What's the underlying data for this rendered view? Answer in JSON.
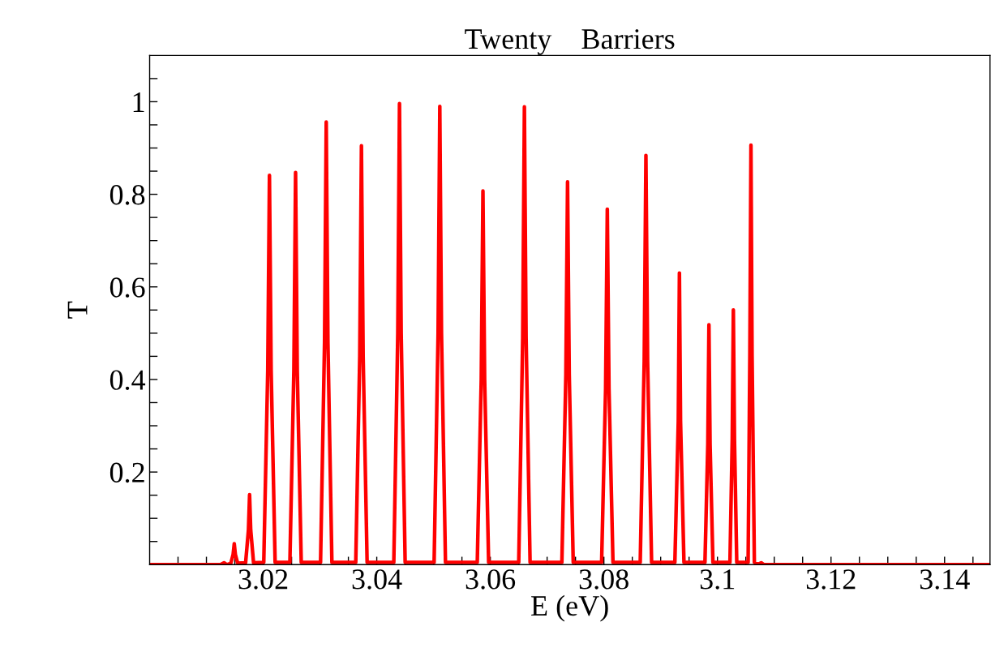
{
  "chart_data": {
    "type": "line",
    "title": "Twenty    Barriers",
    "xlabel": "E (eV)",
    "ylabel": "T",
    "xlim": [
      3.0,
      3.148
    ],
    "ylim": [
      0,
      1.1
    ],
    "xticks": [
      {
        "value": 3.005,
        "label": null
      },
      {
        "value": 3.01,
        "label": null
      },
      {
        "value": 3.015,
        "label": null
      },
      3.02,
      {
        "value": 3.025,
        "label": null
      },
      {
        "value": 3.03,
        "label": null
      },
      {
        "value": 3.035,
        "label": null
      },
      3.04,
      {
        "value": 3.045,
        "label": null
      },
      {
        "value": 3.05,
        "label": null
      },
      {
        "value": 3.055,
        "label": null
      },
      3.06,
      {
        "value": 3.065,
        "label": null
      },
      {
        "value": 3.07,
        "label": null
      },
      {
        "value": 3.075,
        "label": null
      },
      3.08,
      {
        "value": 3.085,
        "label": null
      },
      {
        "value": 3.09,
        "label": null
      },
      {
        "value": 3.095,
        "label": null
      },
      {
        "value": 3.1,
        "label": "3.1"
      },
      {
        "value": 3.105,
        "label": null
      },
      {
        "value": 3.11,
        "label": null
      },
      {
        "value": 3.115,
        "label": null
      },
      3.12,
      {
        "value": 3.125,
        "label": null
      },
      {
        "value": 3.13,
        "label": null
      },
      {
        "value": 3.135,
        "label": null
      },
      3.14,
      {
        "value": 3.145,
        "label": null
      }
    ],
    "yticks": [
      {
        "value": 0.05,
        "label": null
      },
      {
        "value": 0.1,
        "label": null
      },
      {
        "value": 0.15,
        "label": null
      },
      0.2,
      {
        "value": 0.25,
        "label": null
      },
      {
        "value": 0.3,
        "label": null
      },
      {
        "value": 0.35,
        "label": null
      },
      0.4,
      {
        "value": 0.45,
        "label": null
      },
      {
        "value": 0.5,
        "label": null
      },
      {
        "value": 0.55,
        "label": null
      },
      0.6,
      {
        "value": 0.65,
        "label": null
      },
      {
        "value": 0.7,
        "label": null
      },
      {
        "value": 0.75,
        "label": null
      },
      0.8,
      {
        "value": 0.85,
        "label": null
      },
      {
        "value": 0.9,
        "label": null
      },
      {
        "value": 0.95,
        "label": null
      },
      {
        "value": 1,
        "label": "1"
      },
      {
        "value": 1.05,
        "label": null
      }
    ],
    "series": [
      {
        "color": "#ff0000",
        "x": [
          3.0,
          3.0125,
          3.0131,
          3.0136,
          3.0143,
          3.0147,
          3.0149,
          3.0151,
          3.0155,
          3.0169,
          3.0174,
          3.0176,
          3.0178,
          3.0183,
          3.0201,
          3.0208,
          3.0211,
          3.0214,
          3.0221,
          3.0247,
          3.0254,
          3.0257,
          3.026,
          3.0267,
          3.0301,
          3.0308,
          3.0311,
          3.0314,
          3.0321,
          3.0363,
          3.037,
          3.0373,
          3.0376,
          3.0383,
          3.043,
          3.0437,
          3.044,
          3.0443,
          3.045,
          3.0501,
          3.0508,
          3.0511,
          3.0514,
          3.0521,
          3.0577,
          3.0584,
          3.0587,
          3.059,
          3.0597,
          3.065,
          3.0657,
          3.066,
          3.0663,
          3.067,
          3.0726,
          3.0733,
          3.0736,
          3.0739,
          3.0746,
          3.0796,
          3.0803,
          3.0806,
          3.0809,
          3.0816,
          3.0864,
          3.0871,
          3.0874,
          3.0877,
          3.0884,
          3.0925,
          3.0931,
          3.0933,
          3.0935,
          3.0941,
          3.0978,
          3.0983,
          3.0985,
          3.0987,
          3.0992,
          3.1022,
          3.1026,
          3.1028,
          3.103,
          3.1034,
          3.1054,
          3.1057,
          3.1059,
          3.1061,
          3.1065,
          3.1072,
          3.1077,
          3.1082,
          3.148
        ],
        "values": [
          0,
          0,
          0.004,
          0,
          0.003,
          0.022,
          0.045,
          0.022,
          0.003,
          0.004,
          0.075,
          0.151,
          0.075,
          0.004,
          0.005,
          0.42,
          0.841,
          0.42,
          0.005,
          0.005,
          0.42,
          0.847,
          0.42,
          0.005,
          0.005,
          0.48,
          0.956,
          0.48,
          0.005,
          0.005,
          0.45,
          0.905,
          0.45,
          0.005,
          0.005,
          0.5,
          0.996,
          0.5,
          0.005,
          0.005,
          0.5,
          0.99,
          0.5,
          0.005,
          0.005,
          0.4,
          0.807,
          0.4,
          0.005,
          0.005,
          0.49,
          0.989,
          0.49,
          0.005,
          0.005,
          0.41,
          0.827,
          0.41,
          0.005,
          0.005,
          0.38,
          0.768,
          0.38,
          0.005,
          0.005,
          0.44,
          0.884,
          0.44,
          0.005,
          0.005,
          0.31,
          0.63,
          0.31,
          0.005,
          0.005,
          0.26,
          0.518,
          0.26,
          0.005,
          0.005,
          0.27,
          0.55,
          0.27,
          0.005,
          0.005,
          0.45,
          0.906,
          0.45,
          0.005,
          0.001,
          0.004,
          0,
          0
        ]
      }
    ]
  }
}
